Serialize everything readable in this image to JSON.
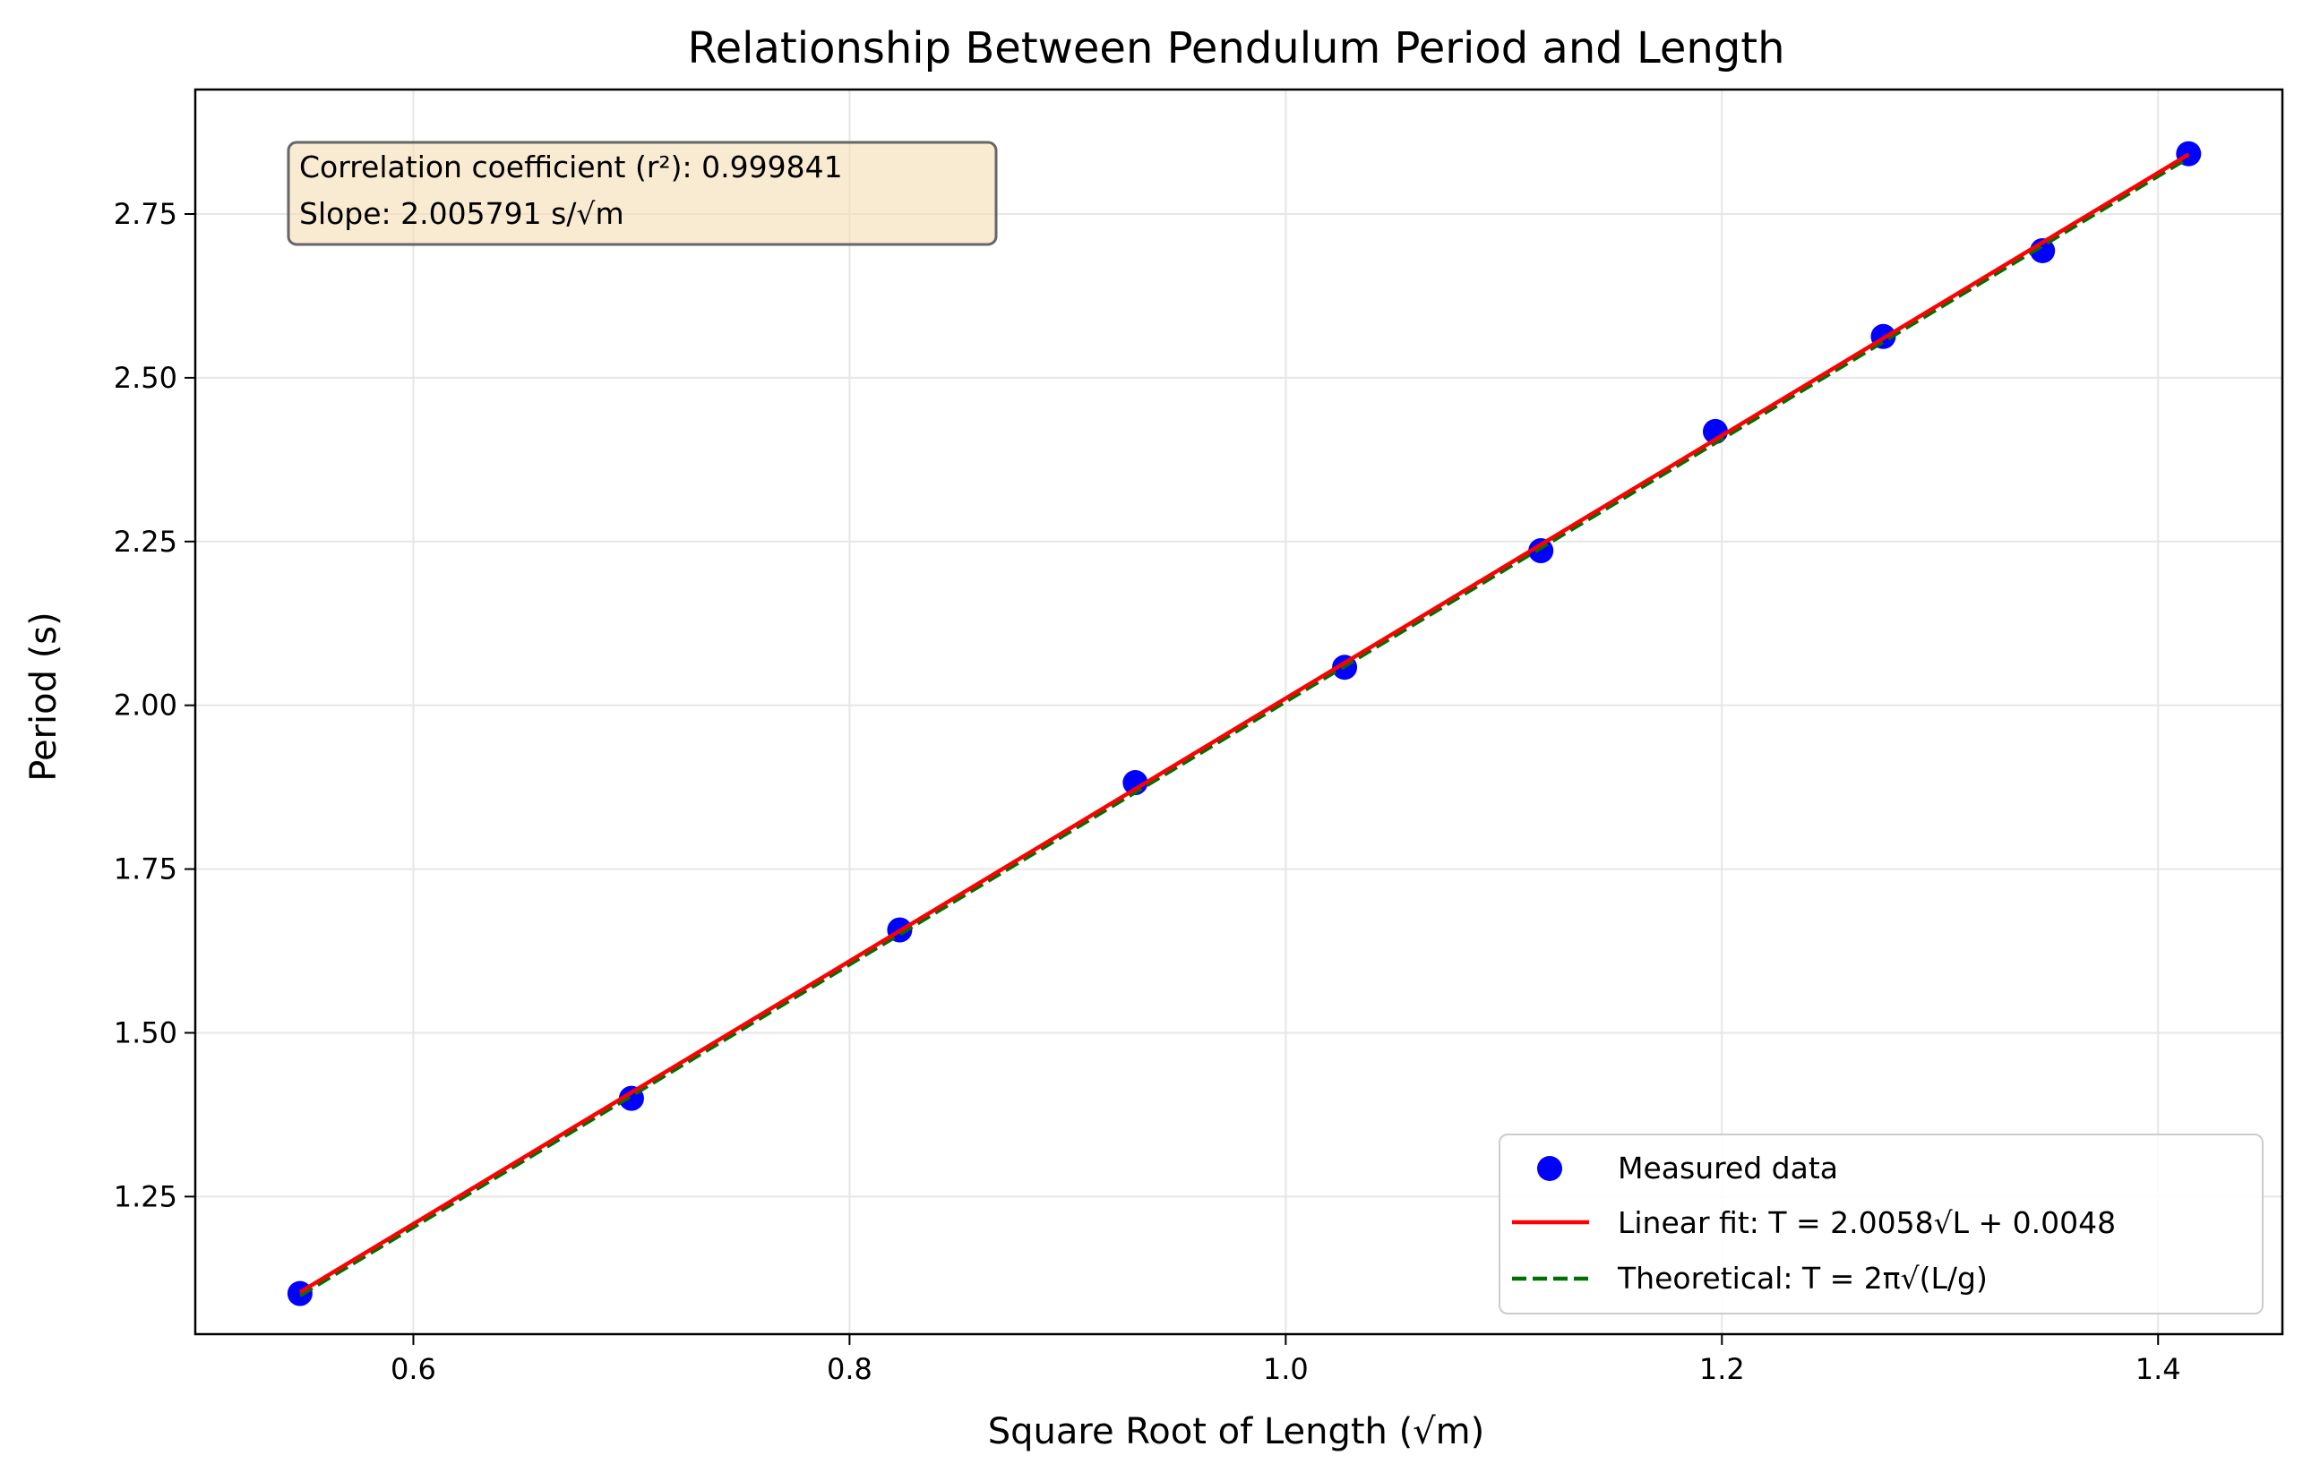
{
  "chart_data": {
    "type": "scatter",
    "title": "Relationship Between Pendulum Period and Length",
    "xlabel": "Square Root of Length (√m)",
    "ylabel": "Period (s)",
    "xlim": [
      0.5,
      1.457
    ],
    "ylim": [
      1.04,
      2.94
    ],
    "xticks": [
      0.6,
      0.8,
      1.0,
      1.2,
      1.4
    ],
    "xtick_labels": [
      "0.6",
      "0.8",
      "1.0",
      "1.2",
      "1.4"
    ],
    "yticks": [
      1.25,
      1.5,
      1.75,
      2.0,
      2.25,
      2.5,
      2.75
    ],
    "ytick_labels": [
      "1.25",
      "1.50",
      "1.75",
      "2.00",
      "2.25",
      "2.50",
      "2.75"
    ],
    "grid": true,
    "legend_position": "bottom-right",
    "series": [
      {
        "name": "Measured data",
        "kind": "scatter",
        "color": "#0000ff",
        "x": [
          0.548,
          0.7,
          0.823,
          0.931,
          1.027,
          1.117,
          1.197,
          1.274,
          1.347,
          1.414
        ],
        "y": [
          1.102,
          1.4,
          1.657,
          1.882,
          2.058,
          2.236,
          2.418,
          2.563,
          2.694,
          2.842
        ]
      },
      {
        "name": "Linear fit: T = 2.0058√L + 0.0048",
        "kind": "line",
        "style": "solid",
        "color": "#ff0000",
        "x": [
          0.548,
          1.414
        ],
        "y": [
          1.104,
          2.841
        ]
      },
      {
        "name": "Theoretical: T = 2π√(L/g)",
        "kind": "line",
        "style": "dashed",
        "color": "#007000",
        "x": [
          0.548,
          1.414
        ],
        "y": [
          1.099,
          2.836
        ]
      }
    ],
    "annotation": {
      "lines": [
        "Correlation coefficient (r²): 0.999841",
        "Slope: 2.005791 s/√m"
      ],
      "background": "#f5deb3",
      "position": "top-left"
    }
  }
}
